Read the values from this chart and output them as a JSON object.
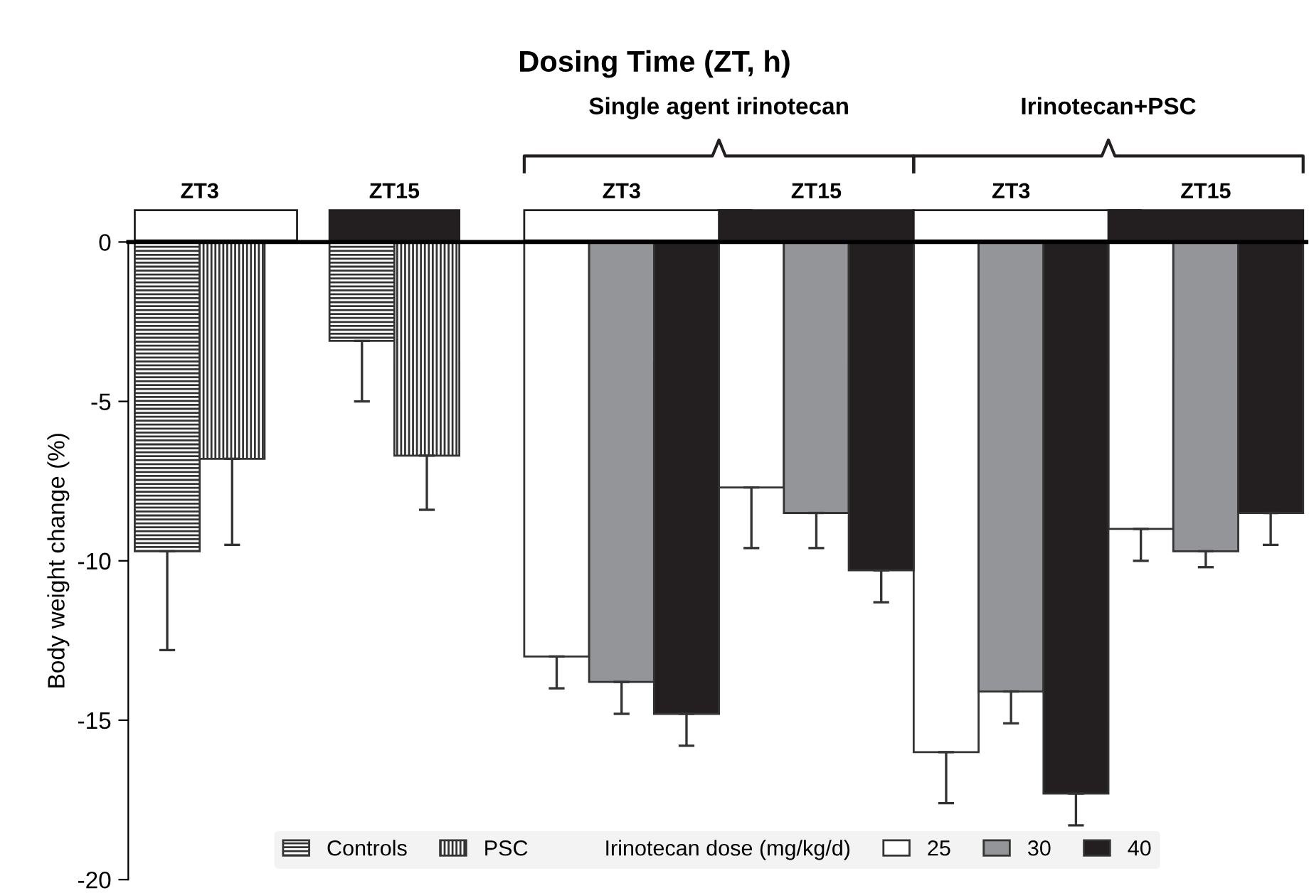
{
  "chart_data": {
    "type": "bar",
    "title": "Dosing Time (ZT, h)",
    "ylabel": "Body weight change (%)",
    "categories": [
      null,
      null,
      null,
      null,
      null,
      null,
      null,
      null,
      null,
      null,
      null,
      null,
      null,
      null,
      null,
      null,
      null,
      null
    ],
    "series": [
      {
        "name": "Controls",
        "color": "#333333",
        "values": [
          -9.7,
          null,
          null,
          -3.1,
          null,
          null,
          null,
          null,
          null,
          null,
          null,
          null,
          null,
          null,
          null,
          null,
          null,
          null
        ],
        "errors": [
          [
            -12.8,
            -9.7
          ],
          null,
          null,
          [
            -5.0,
            -3.1
          ],
          null,
          null,
          null,
          null,
          null,
          null,
          null,
          null,
          null,
          null,
          null,
          null,
          null,
          null
        ]
      },
      {
        "name": "PSC",
        "color": "#333333",
        "values": [
          null,
          -6.8,
          null,
          null,
          -6.7,
          null,
          null,
          null,
          null,
          null,
          null,
          null,
          null,
          null,
          null,
          null,
          null,
          null
        ],
        "errors": [
          null,
          [
            -9.5,
            -6.8
          ],
          null,
          null,
          [
            -8.4,
            -6.7
          ],
          null,
          null,
          null,
          null,
          null,
          null,
          null,
          null,
          null,
          null,
          null,
          null,
          null
        ]
      },
      {
        "name": "25",
        "color": "#ffffff",
        "values": [
          null,
          null,
          null,
          null,
          null,
          null,
          -13.0,
          null,
          null,
          -7.7,
          null,
          null,
          -16.0,
          null,
          null,
          -9.0,
          null,
          null
        ],
        "errors": [
          null,
          null,
          null,
          null,
          null,
          null,
          [
            -14.0,
            -13.0
          ],
          null,
          null,
          [
            -9.6,
            -7.7
          ],
          null,
          null,
          [
            -17.6,
            -16.0
          ],
          null,
          null,
          [
            -10.0,
            -9.0
          ],
          null,
          null
        ]
      },
      {
        "name": "30",
        "color": "#939598",
        "values": [
          null,
          null,
          null,
          null,
          null,
          null,
          null,
          -13.8,
          null,
          null,
          -8.5,
          null,
          null,
          -14.1,
          null,
          null,
          -9.7,
          null
        ],
        "errors": [
          null,
          null,
          null,
          null,
          null,
          null,
          null,
          [
            -14.8,
            -13.8
          ],
          null,
          null,
          [
            -9.6,
            -8.5
          ],
          null,
          null,
          [
            -15.1,
            -14.1
          ],
          null,
          null,
          [
            -10.2,
            -9.7
          ],
          null
        ]
      },
      {
        "name": "40",
        "color": "#231f20",
        "values": [
          null,
          null,
          null,
          null,
          null,
          null,
          null,
          null,
          -14.8,
          null,
          null,
          -10.3,
          null,
          null,
          -17.3,
          null,
          null,
          -8.5
        ],
        "errors": [
          null,
          null,
          null,
          null,
          null,
          null,
          null,
          null,
          [
            -15.8,
            -14.8
          ],
          null,
          null,
          [
            -11.3,
            -10.3
          ],
          null,
          null,
          [
            -18.3,
            -17.3
          ],
          null,
          null,
          [
            -9.5,
            -8.5
          ]
        ]
      }
    ],
    "legend_title": "Irinotecan dose (mg/kg/d)",
    "ylim": [
      -20,
      0
    ],
    "yticks": [
      {
        "value": -20,
        "label": "-20"
      },
      {
        "value": -15,
        "label": "-15"
      },
      {
        "value": -10,
        "label": "-10"
      },
      {
        "value": -5,
        "label": "-5"
      },
      0
    ],
    "annotations": [
      "Single agent irinotecan",
      "Irinotecan+PSC",
      "ZT3",
      "ZT15",
      "ZT3",
      "ZT15",
      "ZT3",
      "ZT15"
    ],
    "legend": "bottom",
    "grid": false
  }
}
